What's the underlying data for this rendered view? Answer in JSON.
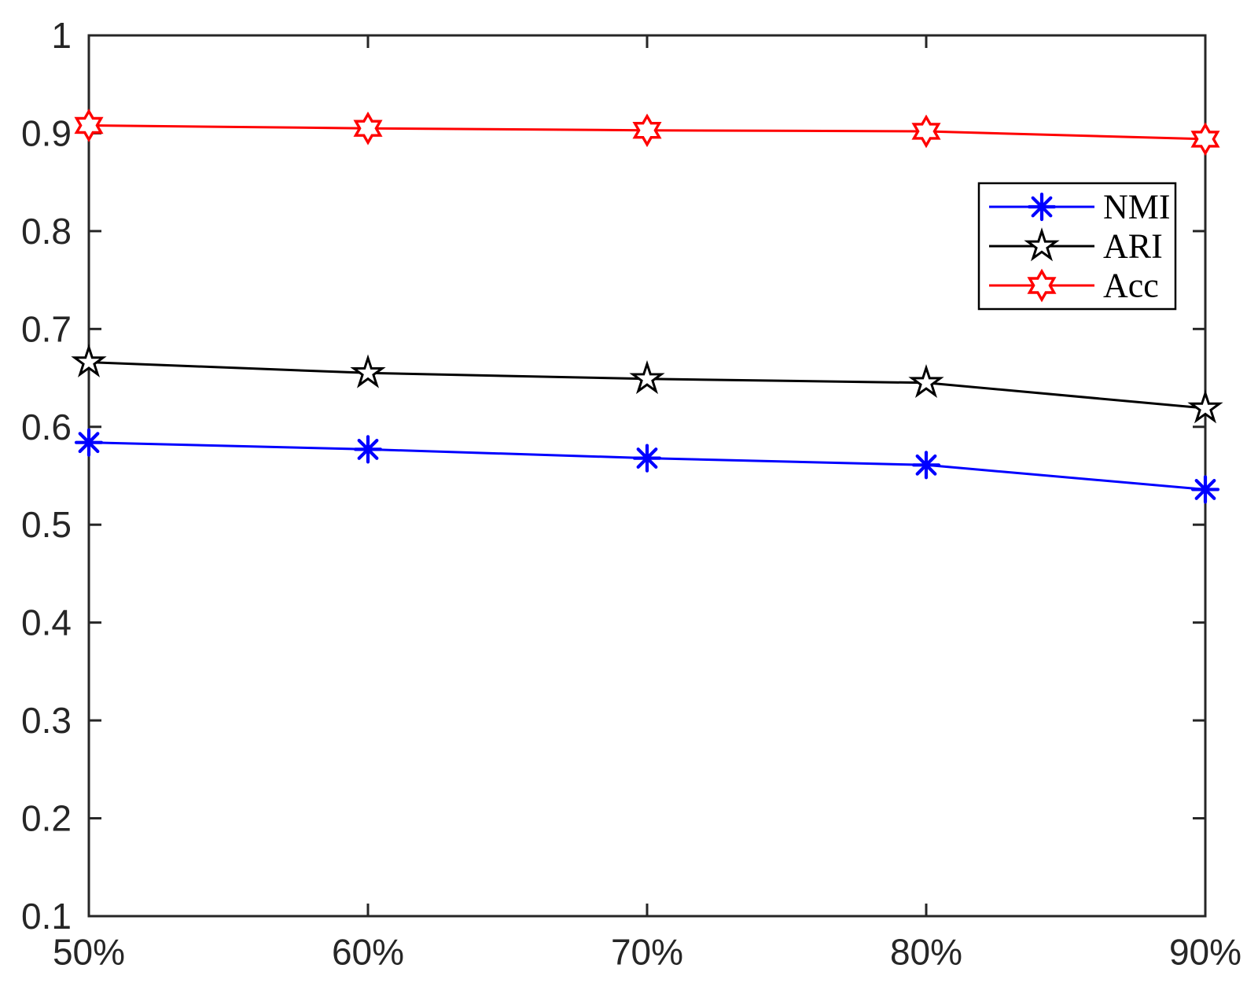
{
  "figure": {
    "background": "#ffffff",
    "axis_color": "#262626"
  },
  "chart_data": {
    "type": "line",
    "title": "",
    "xlabel": "",
    "ylabel": "",
    "grid": false,
    "x_tick_labels": [
      "50%",
      "60%",
      "70%",
      "80%",
      "90%"
    ],
    "x_values": [
      50,
      60,
      70,
      80,
      90
    ],
    "ylim": [
      0.1,
      1.0
    ],
    "y_ticks": [
      0.1,
      0.2,
      0.3,
      0.4,
      0.5,
      0.6,
      0.7,
      0.8,
      0.9,
      1.0
    ],
    "y_tick_labels": [
      "0.1",
      "0.2",
      "0.3",
      "0.4",
      "0.5",
      "0.6",
      "0.7",
      "0.8",
      "0.9",
      "1"
    ],
    "series": [
      {
        "name": "NMI",
        "color": "#0000ff",
        "marker": "asterisk",
        "values": [
          0.584,
          0.577,
          0.568,
          0.561,
          0.536
        ]
      },
      {
        "name": "ARI",
        "color": "#000000",
        "marker": "pentagram",
        "values": [
          0.666,
          0.655,
          0.649,
          0.645,
          0.619
        ]
      },
      {
        "name": "Acc",
        "color": "#ff0000",
        "marker": "hexagram",
        "values": [
          0.908,
          0.905,
          0.903,
          0.902,
          0.894
        ]
      }
    ],
    "legend": {
      "position": "upper-right",
      "border_color": "#000000",
      "background": "#ffffff",
      "entries": [
        "NMI",
        "ARI",
        "Acc"
      ]
    }
  }
}
